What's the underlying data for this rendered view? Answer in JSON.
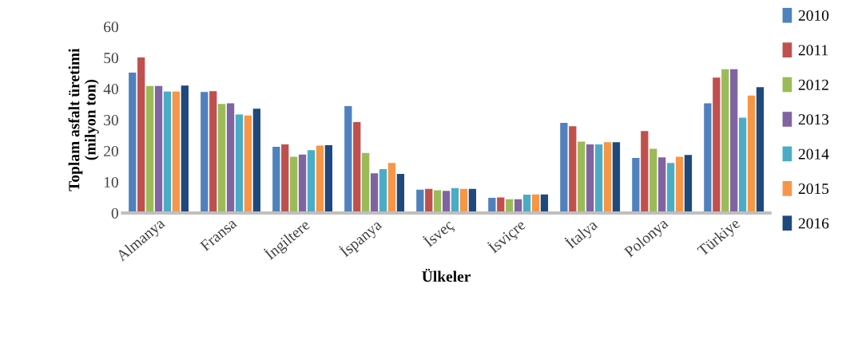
{
  "chart_data": {
    "type": "bar",
    "xlabel": "Ülkeler",
    "ylabel": "Toplam asfalt üretimi\n(milyon ton)",
    "categories": [
      "Almanya",
      "Fransa",
      "İngiltere",
      "İspanya",
      "İsveç",
      "İsviçre",
      "İtalya",
      "Polonya",
      "Türkiye"
    ],
    "series": [
      {
        "name": "2010",
        "color": "#4f81bd",
        "values": [
          45.2,
          39.0,
          21.3,
          34.4,
          7.5,
          4.9,
          29.0,
          17.7,
          35.3
        ]
      },
      {
        "name": "2011",
        "color": "#c0504d",
        "values": [
          50.1,
          39.2,
          22.1,
          29.3,
          7.8,
          5.0,
          27.9,
          26.4,
          43.6
        ]
      },
      {
        "name": "2012",
        "color": "#9bbb59",
        "values": [
          40.9,
          35.1,
          18.1,
          19.3,
          7.3,
          4.4,
          23.0,
          20.7,
          46.3
        ]
      },
      {
        "name": "2013",
        "color": "#8064a2",
        "values": [
          40.9,
          35.3,
          18.8,
          12.8,
          7.1,
          4.4,
          22.1,
          17.9,
          46.3
        ]
      },
      {
        "name": "2014",
        "color": "#4bacc6",
        "values": [
          39.1,
          31.7,
          20.2,
          14.1,
          8.0,
          5.9,
          22.1,
          16.1,
          30.7
        ]
      },
      {
        "name": "2015",
        "color": "#f79646",
        "values": [
          39.1,
          31.4,
          21.7,
          16.1,
          7.8,
          6.0,
          22.8,
          18.1,
          37.8
        ]
      },
      {
        "name": "2016",
        "color": "#1f497d",
        "values": [
          41.0,
          33.6,
          21.8,
          12.6,
          7.8,
          6.0,
          22.8,
          18.7,
          40.5
        ]
      }
    ],
    "ylim": [
      0,
      60
    ],
    "yticks": [
      0,
      10,
      20,
      30,
      40,
      50,
      60
    ],
    "grid": false,
    "legend": "right"
  }
}
